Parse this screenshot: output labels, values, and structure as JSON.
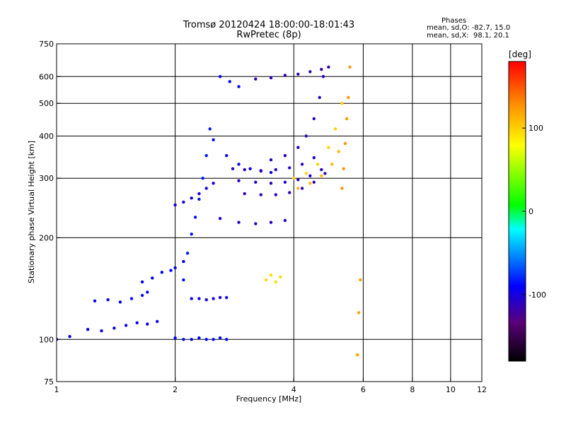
{
  "header": {
    "title_line1": "Tromsø 20120424 18:00:00-18:01:43",
    "title_line2": "RwPretec (8p)"
  },
  "phases": {
    "title": "Phases",
    "line1": "mean, sd,O: -82.7, 15.0",
    "line2": "mean, sd,X:  98.1, 20.1"
  },
  "chart_data": {
    "type": "scatter",
    "title": "Tromsø 20120424 18:00:00-18:01:43",
    "subtitle": "RwPretec (8p)",
    "xlabel": "Frequency [MHz]",
    "ylabel": "Stationary phase Virtual Height [km]",
    "x_scale": "log",
    "y_scale": "log",
    "xlim": [
      1,
      12
    ],
    "ylim": [
      75,
      750
    ],
    "x_ticks": [
      1,
      2,
      4,
      6,
      8,
      10,
      12
    ],
    "y_ticks": [
      75,
      100,
      200,
      300,
      400,
      500,
      600,
      750
    ],
    "x_tick_labels": [
      "1",
      "2",
      "4",
      "6",
      "8",
      "10",
      "12"
    ],
    "y_tick_labels": [
      "75",
      "100",
      "200",
      "300",
      "400",
      "500",
      "600",
      "750"
    ],
    "x_grid": [
      2,
      4,
      6,
      8,
      10
    ],
    "y_grid": [
      100,
      200,
      300,
      400,
      500,
      600
    ],
    "grid": true,
    "colorbar": {
      "label": "[deg]",
      "range": [
        -180,
        180
      ],
      "ticks": [
        100,
        0,
        -100
      ],
      "tick_labels": [
        "100",
        "0",
        "-100"
      ],
      "colors": [
        "#000000",
        "#5a007a",
        "#0000ff",
        "#0078ff",
        "#00ffff",
        "#00ff00",
        "#ffff00",
        "#ff8c00",
        "#ff0000"
      ]
    },
    "series": [
      {
        "phase": -95,
        "x": [
          1.0,
          1.08,
          1.2,
          1.3,
          1.4,
          1.5,
          1.6,
          1.7,
          1.8
        ],
        "y": [
          100,
          102,
          107,
          106,
          108,
          110,
          112,
          111,
          113
        ]
      },
      {
        "phase": -95,
        "x": [
          1.25,
          1.35,
          1.45,
          1.55,
          1.65,
          1.7
        ],
        "y": [
          130,
          131,
          129,
          132,
          135,
          138
        ]
      },
      {
        "phase": -90,
        "x": [
          1.65,
          1.75,
          1.85,
          1.95,
          2.0,
          2.1
        ],
        "y": [
          148,
          152,
          158,
          160,
          163,
          170
        ]
      },
      {
        "phase": -100,
        "x": [
          2.2,
          2.3,
          2.4,
          2.5,
          2.6,
          2.7
        ],
        "y": [
          132,
          132,
          131,
          132,
          133,
          133
        ]
      },
      {
        "phase": -90,
        "x": [
          2.0,
          2.1,
          2.2,
          2.3,
          2.4,
          2.5,
          2.6,
          2.7
        ],
        "y": [
          101,
          100,
          100,
          101,
          100,
          100,
          101,
          100
        ]
      },
      {
        "phase": -85,
        "x": [
          2.1,
          2.15,
          2.2,
          2.25,
          2.3,
          2.35,
          2.4,
          2.45
        ],
        "y": [
          150,
          180,
          205,
          230,
          260,
          300,
          350,
          420
        ]
      },
      {
        "phase": -100,
        "x": [
          2.0,
          2.1,
          2.2,
          2.3,
          2.4,
          2.5
        ],
        "y": [
          250,
          255,
          262,
          270,
          280,
          290
        ]
      },
      {
        "phase": -95,
        "x": [
          2.5,
          2.7,
          2.9,
          3.1,
          3.3,
          3.5
        ],
        "y": [
          390,
          350,
          330,
          320,
          315,
          312
        ]
      },
      {
        "phase": -110,
        "x": [
          2.8,
          3.0,
          3.3,
          3.6,
          3.9,
          4.2,
          4.5
        ],
        "y": [
          320,
          318,
          316,
          318,
          322,
          330,
          345
        ]
      },
      {
        "phase": -110,
        "x": [
          2.9,
          3.2,
          3.5,
          3.8,
          4.1,
          4.4,
          4.7
        ],
        "y": [
          295,
          292,
          290,
          292,
          297,
          305,
          318
        ]
      },
      {
        "phase": -115,
        "x": [
          3.0,
          3.3,
          3.6,
          3.9,
          4.2,
          4.5,
          4.8
        ],
        "y": [
          270,
          268,
          268,
          272,
          280,
          292,
          310
        ]
      },
      {
        "phase": -110,
        "x": [
          2.6,
          2.9,
          3.2,
          3.5,
          3.8
        ],
        "y": [
          228,
          222,
          220,
          222,
          225
        ]
      },
      {
        "phase": -110,
        "x": [
          3.5,
          3.8,
          4.1,
          4.3,
          4.5,
          4.65,
          4.75
        ],
        "y": [
          340,
          350,
          370,
          400,
          450,
          520,
          600
        ]
      },
      {
        "phase": -115,
        "x": [
          3.2,
          3.5,
          3.8,
          4.1,
          4.4,
          4.7,
          4.9
        ],
        "y": [
          590,
          595,
          605,
          610,
          620,
          630,
          640
        ]
      },
      {
        "phase": -95,
        "x": [
          2.6,
          2.75,
          2.9
        ],
        "y": [
          600,
          580,
          560
        ]
      },
      {
        "phase": 100,
        "x": [
          4.0,
          4.3,
          4.6,
          4.9,
          5.1,
          5.3
        ],
        "y": [
          300,
          310,
          330,
          370,
          420,
          500
        ]
      },
      {
        "phase": 110,
        "x": [
          4.1,
          4.4,
          4.7,
          5.0,
          5.2
        ],
        "y": [
          280,
          290,
          305,
          330,
          360
        ]
      },
      {
        "phase": 125,
        "x": [
          5.3,
          5.35,
          5.4,
          5.45,
          5.5,
          5.55
        ],
        "y": [
          280,
          320,
          380,
          450,
          520,
          640
        ]
      },
      {
        "phase": 95,
        "x": [
          3.4,
          3.5,
          3.6,
          3.7
        ],
        "y": [
          150,
          155,
          148,
          153
        ]
      },
      {
        "phase": 120,
        "x": [
          5.8,
          5.85,
          5.9
        ],
        "y": [
          90,
          120,
          150
        ]
      }
    ]
  }
}
